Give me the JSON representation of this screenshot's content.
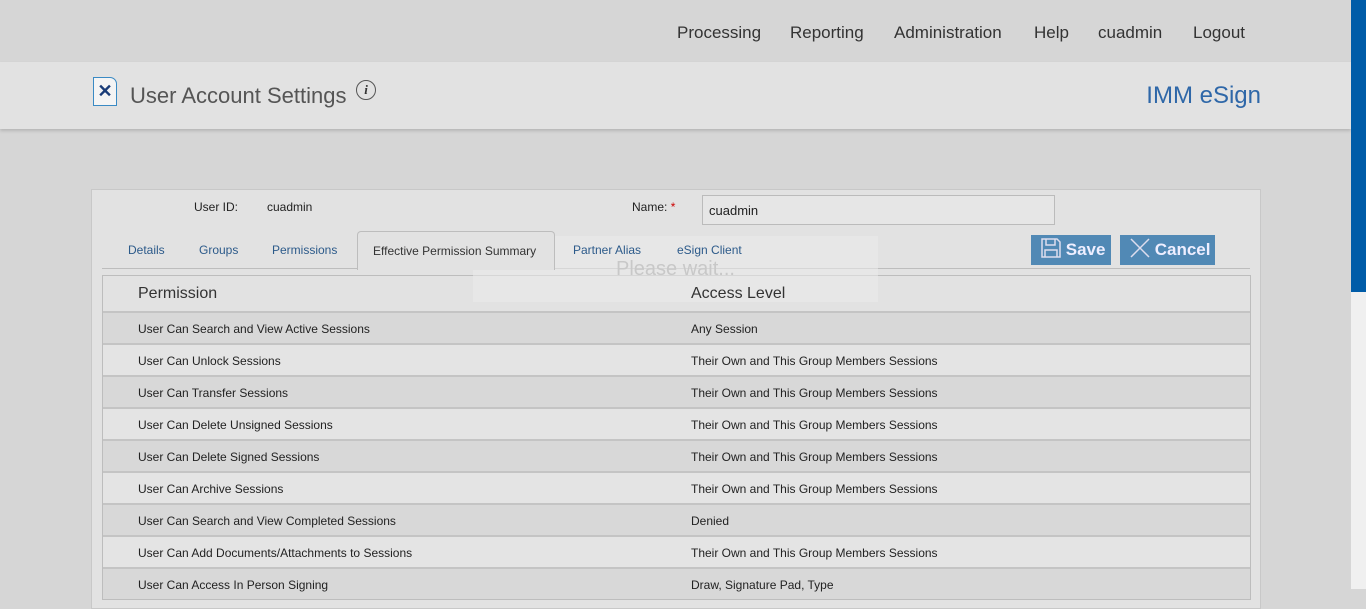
{
  "nav": [
    "Processing",
    "Reporting",
    "Administration",
    "Help",
    "cuadmin",
    "Logout"
  ],
  "header": {
    "title": "User Account Settings",
    "brand": "IMM eSign",
    "info": "i"
  },
  "form": {
    "user_id_label": "User ID:",
    "user_id": "cuadmin",
    "name_label": "Name:",
    "required": "*",
    "name_value": "cuadmin"
  },
  "tabs": [
    "Details",
    "Groups",
    "Permissions",
    "Effective Permission Summary",
    "Partner Alias",
    "eSign Client"
  ],
  "active_tab": "Effective Permission Summary",
  "buttons": {
    "save": "Save",
    "cancel": "Cancel"
  },
  "overlay": "Please wait...",
  "table": {
    "headers": [
      "Permission",
      "Access Level"
    ],
    "rows": [
      [
        "User Can Search and View Active Sessions",
        "Any Session"
      ],
      [
        "User Can Unlock Sessions",
        "Their Own and This Group Members Sessions"
      ],
      [
        "User Can Transfer Sessions",
        "Their Own and This Group Members Sessions"
      ],
      [
        "User Can Delete Unsigned Sessions",
        "Their Own and This Group Members Sessions"
      ],
      [
        "User Can Delete Signed Sessions",
        "Their Own and This Group Members Sessions"
      ],
      [
        "User Can Archive Sessions",
        "Their Own and This Group Members Sessions"
      ],
      [
        "User Can Search and View Completed Sessions",
        "Denied"
      ],
      [
        "User Can Add Documents/Attachments to Sessions",
        "Their Own and This Group Members Sessions"
      ],
      [
        "User Can Access In Person Signing",
        "Draw, Signature Pad, Type"
      ]
    ]
  },
  "colors": {
    "brand": "#2e67a8",
    "button": "#5189b5",
    "scroll_thumb": "#005ca8"
  }
}
